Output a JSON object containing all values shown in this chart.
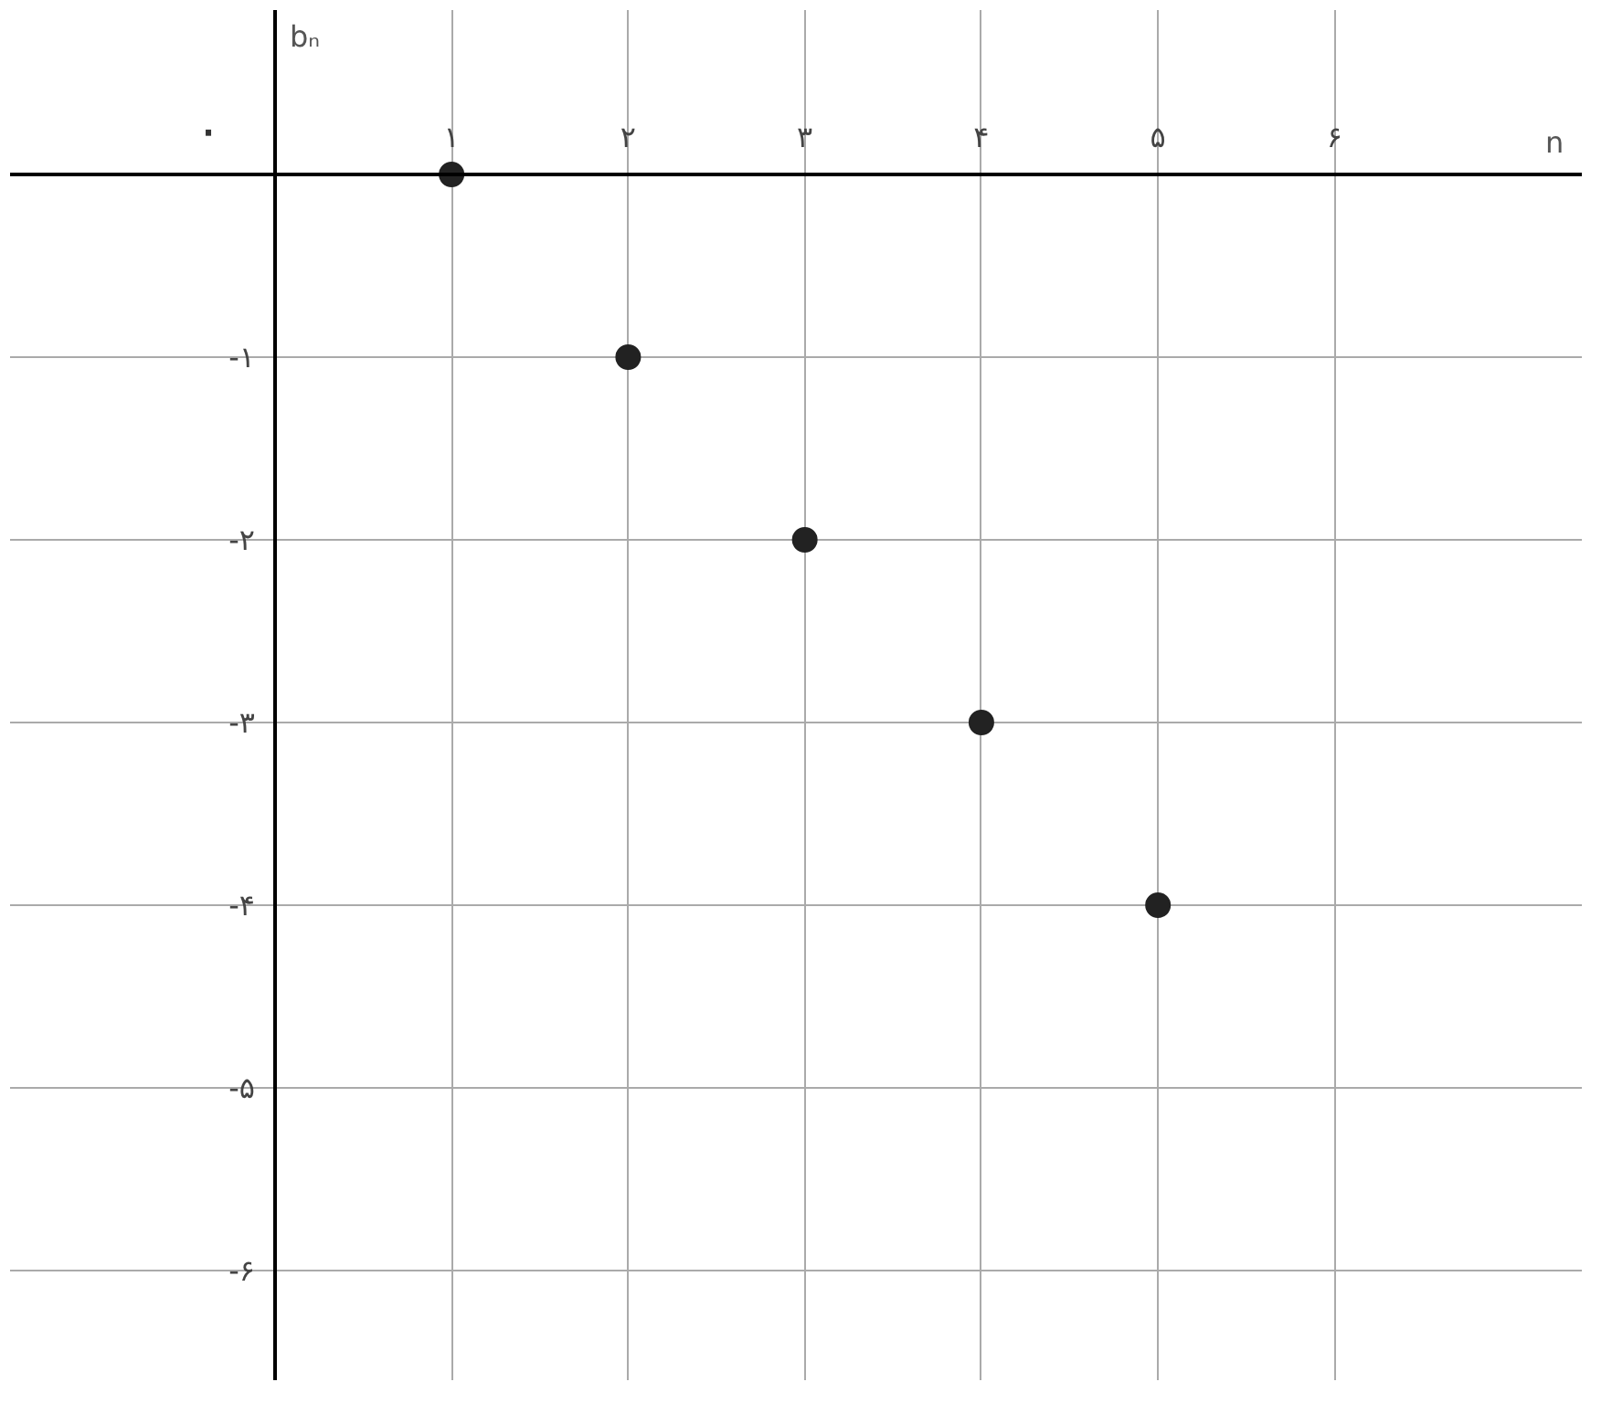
{
  "chart_data": {
    "type": "scatter",
    "xlabel": "n",
    "ylabel": "bₙ",
    "x": [
      1,
      2,
      3,
      4,
      5
    ],
    "series": [
      {
        "color": "#222222",
        "values": [
          0,
          -1,
          -2,
          -3,
          -4
        ]
      }
    ],
    "marker": "circle",
    "grid": true,
    "xlim": [
      -1.5,
      7.4
    ],
    "ylim": [
      -6.6,
      0.9
    ],
    "annotations": [
      "۰"
    ],
    "xticks": [
      {
        "value": 1,
        "label": "۱"
      },
      {
        "value": 2,
        "label": "۲"
      },
      {
        "value": 3,
        "label": "۳"
      },
      {
        "value": 4,
        "label": "۴"
      },
      {
        "value": 5,
        "label": "۵"
      },
      {
        "value": 6,
        "label": "۶"
      }
    ],
    "yticks": [
      {
        "value": -1,
        "label": "-۱"
      },
      {
        "value": -2,
        "label": "-۲"
      },
      {
        "value": -3,
        "label": "-۳"
      },
      {
        "value": -4,
        "label": "-۴"
      },
      {
        "value": -5,
        "label": "-۵"
      },
      {
        "value": -6,
        "label": "-۶"
      }
    ]
  }
}
